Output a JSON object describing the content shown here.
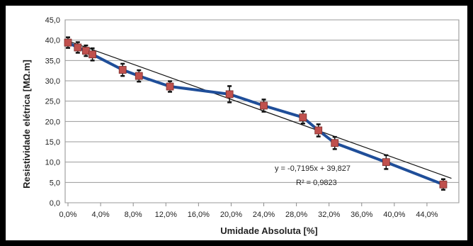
{
  "chart_data": {
    "type": "line",
    "title": "",
    "xlabel": "Umidade Absoluta [%]",
    "ylabel": "Resistividade elétrica [MΩ.m]",
    "xlim": [
      0,
      0.47
    ],
    "ylim": [
      0,
      45
    ],
    "x_tick_labels": [
      "0,0%",
      "4,0%",
      "8,0%",
      "12,0%",
      "16,0%",
      "20,0%",
      "24,0%",
      "28,0%",
      "32,0%",
      "36,0%",
      "40,0%",
      "44,0%"
    ],
    "y_tick_labels": [
      "0,0",
      "5,0",
      "10,0",
      "15,0",
      "20,0",
      "25,0",
      "30,0",
      "35,0",
      "40,0",
      "45,0"
    ],
    "grid": true,
    "legend": "none",
    "series": [
      {
        "x": [
          0.0,
          0.012,
          0.022,
          0.03,
          0.067,
          0.087,
          0.125,
          0.198,
          0.24,
          0.288,
          0.307,
          0.327,
          0.39,
          0.46
        ],
        "y": [
          39.4,
          38.2,
          37.4,
          36.5,
          32.7,
          31.2,
          28.6,
          26.7,
          23.9,
          21.0,
          17.8,
          14.7,
          10.0,
          4.5
        ],
        "error": [
          1.3,
          1.3,
          1.3,
          1.5,
          1.5,
          1.4,
          1.3,
          2.0,
          1.5,
          1.5,
          1.5,
          1.5,
          1.7,
          1.3
        ],
        "color": "#1f4e99",
        "marker_color": "#c0504d"
      }
    ],
    "trendline": {
      "slope": -0.7195,
      "intercept": 39.827,
      "equation": "y = -0,7195x + 39,827",
      "r_squared": "R² = 0,9823",
      "color": "#111111"
    }
  }
}
